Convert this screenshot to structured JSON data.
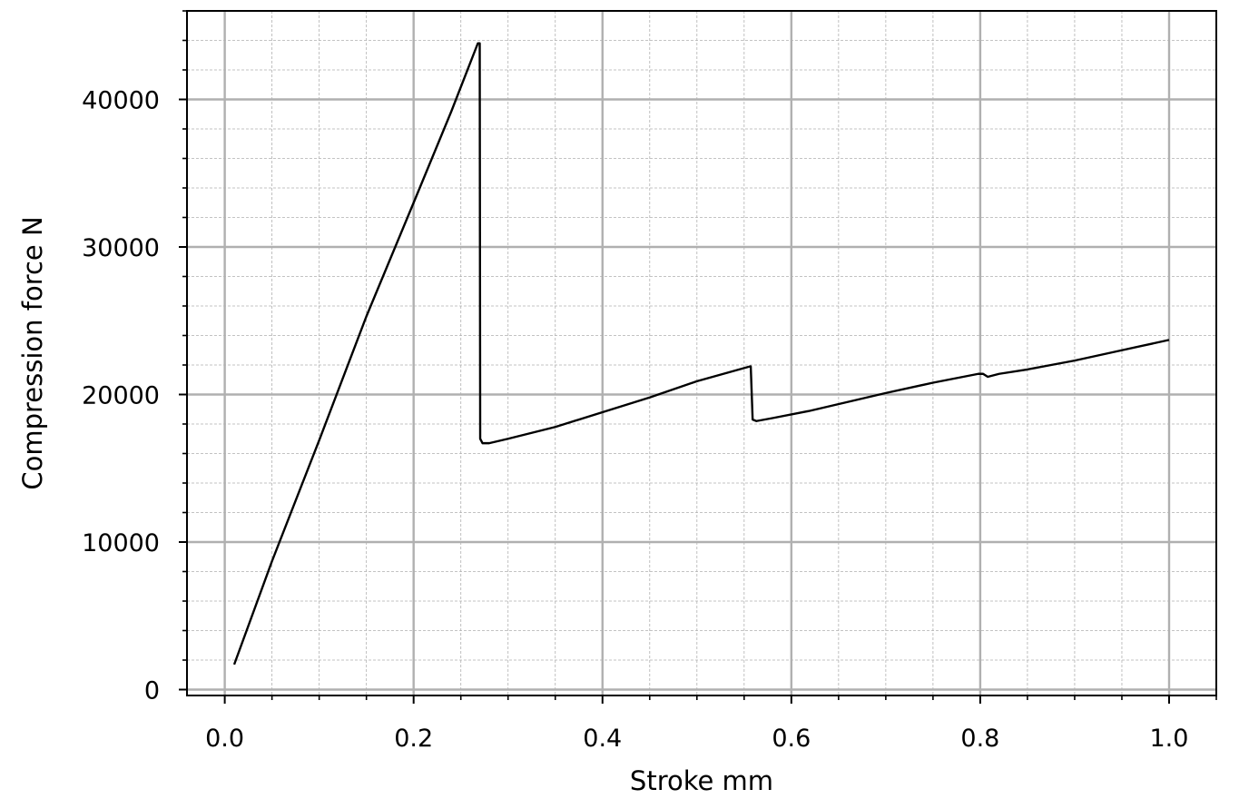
{
  "chart_data": {
    "type": "line",
    "xlabel": "Stroke mm",
    "ylabel": "Compression force N",
    "xlim": [
      -0.04,
      1.05
    ],
    "ylim": [
      -400,
      46000
    ],
    "x_ticks": [
      0.0,
      0.2,
      0.4,
      0.6,
      0.8,
      1.0
    ],
    "x_tick_labels": [
      "0.0",
      "0.2",
      "0.4",
      "0.6",
      "0.8",
      "1.0"
    ],
    "y_ticks": [
      0,
      10000,
      20000,
      30000,
      40000
    ],
    "y_tick_labels": [
      "0",
      "10000",
      "20000",
      "30000",
      "40000"
    ],
    "x_minor_step": 0.05,
    "y_minor_step": 2000,
    "grid": {
      "major": true,
      "minor": true
    },
    "series": [
      {
        "color": "#000000",
        "x": [
          0.01,
          0.05,
          0.1,
          0.15,
          0.2,
          0.24,
          0.268,
          0.27,
          0.2705,
          0.273,
          0.28,
          0.3,
          0.35,
          0.4,
          0.45,
          0.5,
          0.556,
          0.557,
          0.559,
          0.563,
          0.58,
          0.62,
          0.66,
          0.7,
          0.75,
          0.798,
          0.803,
          0.808,
          0.82,
          0.85,
          0.9,
          0.95,
          1.0
        ],
        "y": [
          1700,
          8700,
          16900,
          25300,
          33000,
          39200,
          43800,
          43800,
          17000,
          16700,
          16700,
          17000,
          17800,
          18800,
          19800,
          20900,
          21900,
          21900,
          18300,
          18200,
          18400,
          18900,
          19500,
          20100,
          20800,
          21400,
          21400,
          21200,
          21400,
          21700,
          22300,
          23000,
          23700
        ]
      }
    ]
  }
}
